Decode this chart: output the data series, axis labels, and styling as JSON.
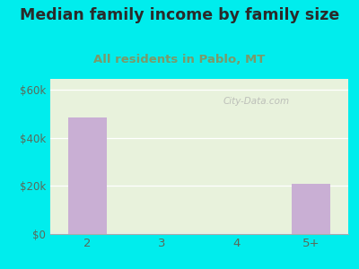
{
  "title": "Median family income by family size",
  "subtitle": "All residents in Pablo, MT",
  "categories": [
    "2",
    "3",
    "4",
    "5+"
  ],
  "values": [
    48500,
    0,
    0,
    21000
  ],
  "bar_color": "#c9afd4",
  "background_outer": "#00eded",
  "background_inner_top": "#e0f0ea",
  "background_inner_bottom": "#e8f2dc",
  "title_color": "#2a2a2a",
  "subtitle_color": "#7a9a6a",
  "tick_label_color": "#5a6a5a",
  "ytick_labels": [
    "$0",
    "$20k",
    "$40k",
    "$60k"
  ],
  "ytick_values": [
    0,
    20000,
    40000,
    60000
  ],
  "ylim": [
    0,
    65000
  ],
  "title_fontsize": 12.5,
  "subtitle_fontsize": 9.5,
  "watermark": "City-Data.com"
}
